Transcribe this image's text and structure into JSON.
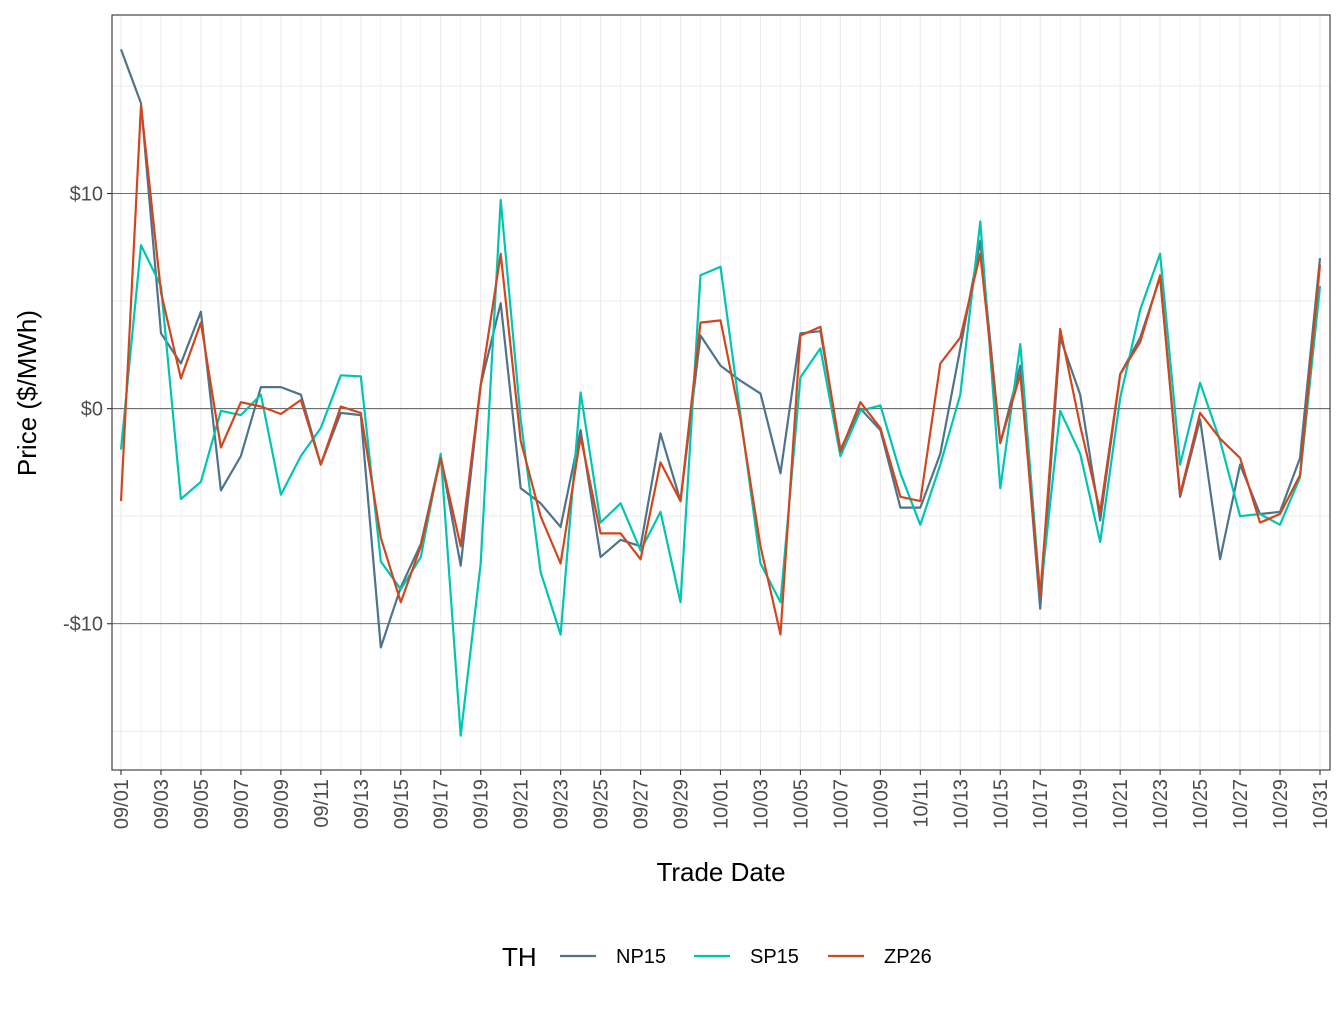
{
  "chart_data": {
    "type": "line",
    "title": "",
    "xlabel": "Trade Date",
    "ylabel": "Price ($/MWh)",
    "ylim": [
      -16.8,
      18.3
    ],
    "y_ticks": [
      -10,
      0,
      10
    ],
    "y_tick_labels": [
      "-$10",
      "$0",
      "$10"
    ],
    "grid": true,
    "legend": {
      "title": "TH",
      "position": "bottom"
    },
    "x": [
      "09/01",
      "09/02",
      "09/03",
      "09/04",
      "09/05",
      "09/06",
      "09/07",
      "09/08",
      "09/09",
      "09/10",
      "09/11",
      "09/12",
      "09/13",
      "09/14",
      "09/15",
      "09/16",
      "09/17",
      "09/18",
      "09/19",
      "09/20",
      "09/21",
      "09/22",
      "09/23",
      "09/24",
      "09/25",
      "09/26",
      "09/27",
      "09/28",
      "09/29",
      "09/30",
      "10/01",
      "10/02",
      "10/03",
      "10/04",
      "10/05",
      "10/06",
      "10/07",
      "10/08",
      "10/09",
      "10/10",
      "10/11",
      "10/12",
      "10/13",
      "10/14",
      "10/15",
      "10/16",
      "10/17",
      "10/18",
      "10/19",
      "10/20",
      "10/21",
      "10/22",
      "10/23",
      "10/24",
      "10/25",
      "10/26",
      "10/27",
      "10/28",
      "10/29",
      "10/30",
      "10/31"
    ],
    "x_tick_labels": [
      "09/01",
      "09/03",
      "09/05",
      "09/07",
      "09/09",
      "09/11",
      "09/13",
      "09/15",
      "09/17",
      "09/19",
      "09/21",
      "09/23",
      "09/25",
      "09/27",
      "09/29",
      "10/01",
      "10/03",
      "10/05",
      "10/07",
      "10/09",
      "10/11",
      "10/13",
      "10/15",
      "10/17",
      "10/19",
      "10/21",
      "10/23",
      "10/25",
      "10/27",
      "10/29",
      "10/31"
    ],
    "series": [
      {
        "name": "NP15",
        "color": "#4f7489",
        "values": [
          16.7,
          14.2,
          3.5,
          2.1,
          4.5,
          -3.8,
          -2.2,
          1.0,
          1.0,
          0.65,
          -2.6,
          -0.2,
          -0.3,
          -11.1,
          -8.3,
          -6.3,
          -2.2,
          -7.3,
          1.1,
          4.9,
          -3.7,
          -4.4,
          -5.5,
          -1.0,
          -6.9,
          -6.1,
          -6.4,
          -1.15,
          -4.3,
          3.4,
          2.0,
          1.3,
          0.7,
          -3.0,
          3.5,
          3.6,
          -1.9,
          0.0,
          -1.0,
          -4.6,
          -4.6,
          -2.1,
          2.8,
          7.8,
          -1.6,
          2.0,
          -9.3,
          3.3,
          0.65,
          -5.2,
          1.6,
          3.3,
          6.1,
          -4.1,
          -0.5,
          -7.0,
          -2.6,
          -4.9,
          -4.8,
          -2.3,
          7.0
        ]
      },
      {
        "name": "SP15",
        "color": "#00c5b0",
        "values": [
          -1.9,
          7.6,
          5.7,
          -4.2,
          -3.4,
          -0.1,
          -0.3,
          0.65,
          -4.0,
          -2.2,
          -0.9,
          1.55,
          1.5,
          -7.1,
          -8.4,
          -6.9,
          -2.1,
          -15.2,
          -7.2,
          9.7,
          -0.5,
          -7.6,
          -10.5,
          0.75,
          -5.3,
          -4.4,
          -6.6,
          -4.8,
          -9.0,
          6.2,
          6.6,
          -0.3,
          -7.2,
          -9.0,
          1.45,
          2.8,
          -2.2,
          -0.1,
          0.15,
          -3.0,
          -5.4,
          -2.6,
          0.65,
          8.7,
          -3.7,
          3.0,
          -8.7,
          -0.1,
          -2.1,
          -6.2,
          0.5,
          4.6,
          7.2,
          -2.6,
          1.2,
          -1.5,
          -5.0,
          -4.9,
          -5.4,
          -3.2,
          5.7
        ]
      },
      {
        "name": "ZP26",
        "color": "#d2461f",
        "values": [
          -4.3,
          14.1,
          5.4,
          1.4,
          4.0,
          -1.8,
          0.3,
          0.1,
          -0.25,
          0.4,
          -2.6,
          0.1,
          -0.2,
          -6.0,
          -9.0,
          -6.4,
          -2.3,
          -6.4,
          1.1,
          7.2,
          -1.5,
          -5.0,
          -7.2,
          -1.3,
          -5.8,
          -5.8,
          -7.0,
          -2.5,
          -4.3,
          4.0,
          4.1,
          -0.5,
          -6.4,
          -10.5,
          3.4,
          3.8,
          -2.0,
          0.3,
          -0.9,
          -4.1,
          -4.3,
          2.1,
          3.3,
          7.2,
          -1.6,
          1.6,
          -8.7,
          3.7,
          -0.8,
          -4.8,
          1.6,
          3.1,
          6.2,
          -4.0,
          -0.2,
          -1.4,
          -2.3,
          -5.3,
          -4.9,
          -3.1,
          6.7
        ]
      }
    ]
  }
}
